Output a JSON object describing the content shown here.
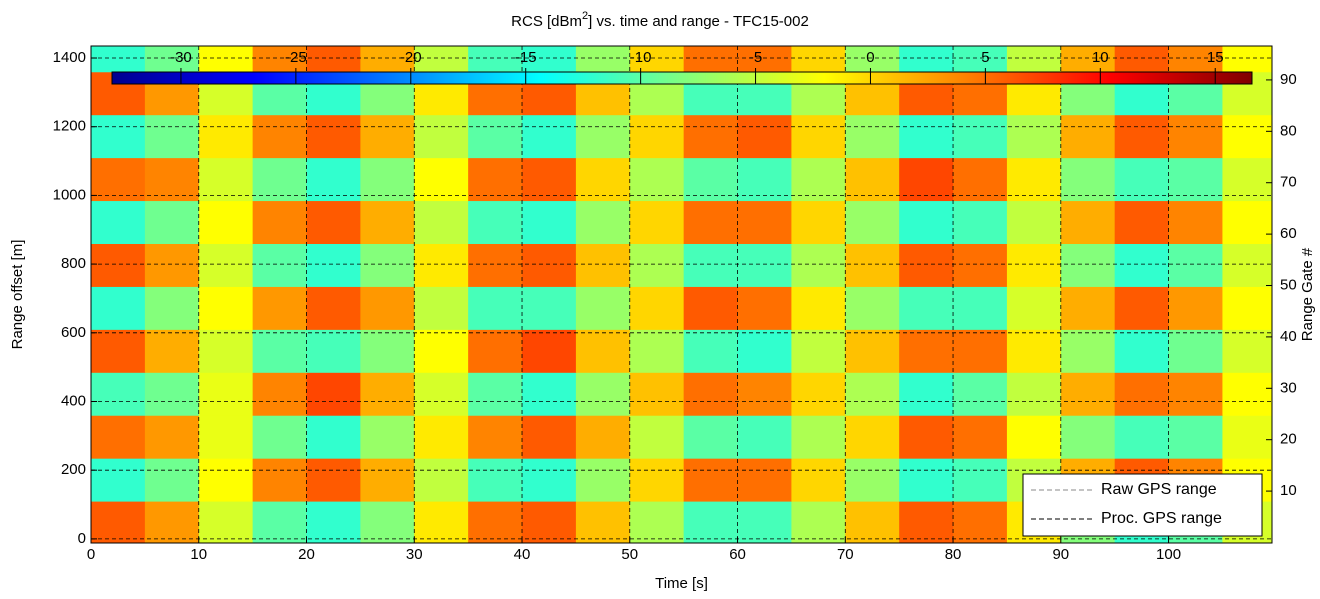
{
  "chart_data": {
    "type": "heatmap",
    "title": [
      "RCS [dBm",
      "2",
      "] vs. time and range - TFC15-002"
    ],
    "xlabel": "Time [s]",
    "ylabel": "Range offset [m]",
    "y2label": "Range Gate #",
    "xlim": [
      0,
      109.6
    ],
    "xticks": [
      0,
      10,
      20,
      30,
      40,
      50,
      60,
      70,
      80,
      90,
      100
    ],
    "ylim": [
      -12,
      1435
    ],
    "yticks": [
      0,
      200,
      400,
      600,
      800,
      1000,
      1200,
      1400
    ],
    "y2lim": [
      -0.1,
      96.6
    ],
    "y2ticks": [
      10,
      20,
      30,
      40,
      50,
      60,
      70,
      80,
      90
    ],
    "grid": true,
    "clim": [
      -33,
      16.6
    ],
    "cticks": [
      -30,
      -25,
      -20,
      -15,
      -10,
      -5,
      0,
      5,
      10,
      15
    ],
    "colormap": "jet",
    "x_bins": [
      0,
      5,
      10,
      15,
      20,
      25,
      30,
      35,
      40,
      45,
      50,
      55,
      60,
      65,
      70,
      75,
      80,
      85,
      90,
      95,
      100,
      105,
      110
    ],
    "y_bins": [
      -15,
      110,
      235,
      360,
      485,
      610,
      735,
      860,
      985,
      1110,
      1235,
      1360,
      1485
    ],
    "z": [
      [
        6,
        3,
        -4,
        -10,
        -12,
        -8,
        -1,
        5,
        6,
        1,
        -6,
        -11,
        -11,
        -6,
        1,
        6,
        5,
        -1,
        -8,
        -12,
        -10,
        -4
      ],
      [
        -12,
        -9,
        -2,
        4,
        6,
        2,
        -5,
        -11,
        -12,
        -7,
        0,
        5,
        5,
        0,
        -7,
        -12,
        -11,
        -5,
        2,
        6,
        4,
        -2
      ],
      [
        5,
        3,
        -3,
        -9,
        -12,
        -7,
        -1,
        4,
        6,
        2,
        -5,
        -10,
        -11,
        -6,
        0,
        6,
        5,
        -2,
        -8,
        -11,
        -10,
        -3
      ],
      [
        -11,
        -9,
        -3,
        4,
        7,
        2,
        -4,
        -10,
        -12,
        -7,
        1,
        5,
        4,
        0,
        -6,
        -12,
        -10,
        -5,
        2,
        5,
        4,
        -2
      ],
      [
        6,
        2,
        -4,
        -10,
        -11,
        -8,
        -2,
        5,
        7,
        1,
        -6,
        -11,
        -12,
        -5,
        1,
        5,
        5,
        -1,
        -7,
        -12,
        -9,
        -4
      ],
      [
        -12,
        -8,
        -2,
        3,
        6,
        3,
        -5,
        -11,
        -11,
        -7,
        0,
        6,
        5,
        -1,
        -7,
        -11,
        -11,
        -4,
        2,
        6,
        3,
        -2
      ],
      [
        6,
        3,
        -4,
        -10,
        -12,
        -8,
        -1,
        5,
        6,
        1,
        -6,
        -11,
        -11,
        -6,
        1,
        6,
        5,
        -1,
        -8,
        -12,
        -10,
        -4
      ],
      [
        -12,
        -9,
        -2,
        4,
        6,
        2,
        -5,
        -11,
        -12,
        -7,
        0,
        5,
        5,
        0,
        -7,
        -12,
        -11,
        -5,
        2,
        6,
        4,
        -2
      ],
      [
        5,
        4,
        -4,
        -9,
        -12,
        -8,
        -2,
        5,
        6,
        0,
        -6,
        -10,
        -11,
        -6,
        1,
        7,
        5,
        -1,
        -8,
        -11,
        -10,
        -4
      ],
      [
        -12,
        -9,
        -1,
        4,
        6,
        2,
        -5,
        -10,
        -12,
        -7,
        0,
        5,
        6,
        0,
        -7,
        -12,
        -11,
        -6,
        2,
        6,
        4,
        -2
      ],
      [
        6,
        3,
        -4,
        -10,
        -12,
        -8,
        -1,
        5,
        6,
        1,
        -6,
        -11,
        -11,
        -6,
        1,
        6,
        5,
        -1,
        -8,
        -12,
        -10,
        -4
      ],
      [
        -12,
        -9,
        -2,
        4,
        6,
        2,
        -5,
        -11,
        -12,
        -7,
        0,
        5,
        5,
        0,
        -7,
        -12,
        -11,
        -5,
        2,
        6,
        4,
        -2
      ]
    ],
    "legend": {
      "loc": "lower right",
      "entries": [
        {
          "name": "Raw GPS range",
          "color": "#888888"
        },
        {
          "name": "Proc. GPS range",
          "color": "#000000"
        }
      ]
    }
  }
}
